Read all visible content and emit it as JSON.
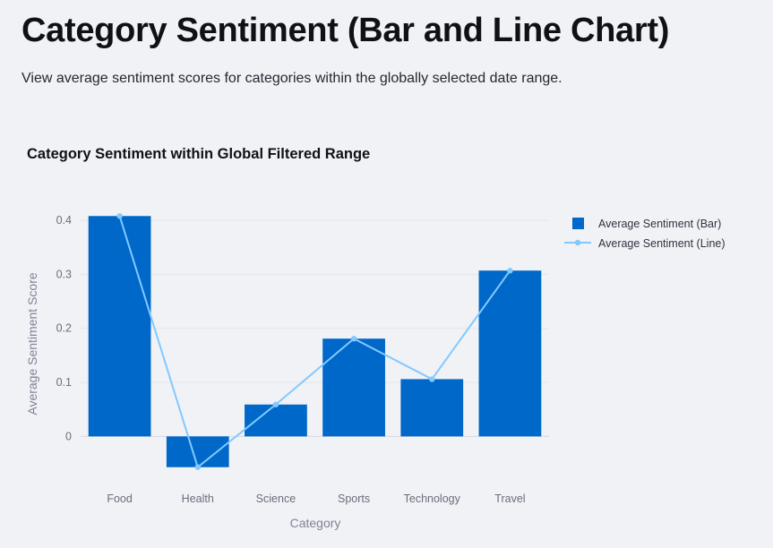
{
  "page": {
    "title": "Category Sentiment (Bar and Line Chart)",
    "description": "View average sentiment scores for categories within the globally selected date range."
  },
  "colors": {
    "background": "#f0f2f6",
    "bar": "#0068c9",
    "line": "#83c9ff",
    "grid": "#e3e5ea"
  },
  "chart_data": {
    "type": "bar",
    "title": "Category Sentiment within Global Filtered Range",
    "xlabel": "Category",
    "ylabel": "Average Sentiment Score",
    "categories": [
      "Food",
      "Health",
      "Science",
      "Sports",
      "Technology",
      "Travel"
    ],
    "series": [
      {
        "name": "Average Sentiment (Bar)",
        "type": "bar",
        "color": "#0068c9",
        "values": [
          0.408,
          -0.057,
          0.059,
          0.181,
          0.106,
          0.307
        ]
      },
      {
        "name": "Average Sentiment (Line)",
        "type": "line",
        "color": "#83c9ff",
        "values": [
          0.408,
          -0.057,
          0.059,
          0.181,
          0.106,
          0.307
        ]
      }
    ],
    "ylim": [
      -0.074,
      0.43
    ],
    "yticks": [
      0,
      0.1,
      0.2,
      0.3,
      0.4
    ],
    "ytick_labels": [
      "0",
      "0.1",
      "0.2",
      "0.3",
      "0.4"
    ],
    "grid": true,
    "legend_position": "top-right"
  }
}
